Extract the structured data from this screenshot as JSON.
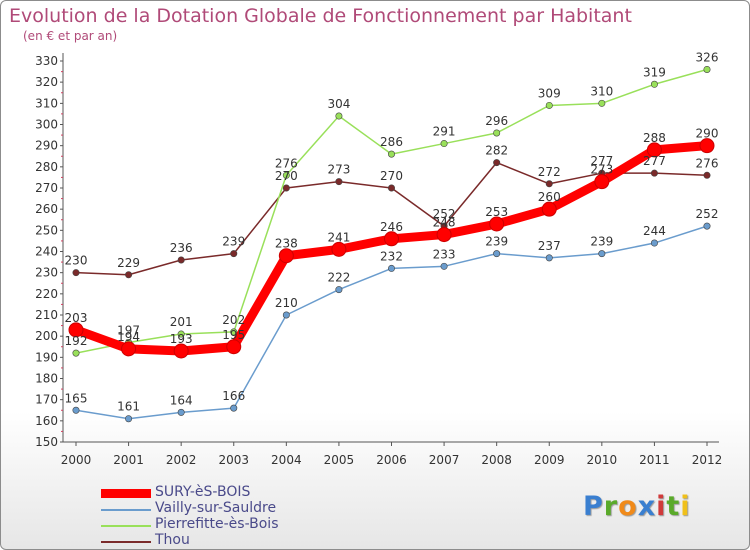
{
  "header": {
    "title": "Evolution de la Dotation Globale de Fonctionnement par Habitant",
    "subtitle": "(en € et par an)"
  },
  "chart_data": {
    "type": "line",
    "title": "Evolution de la Dotation Globale de Fonctionnement par Habitant",
    "subtitle": "(en € et par an)",
    "xlabel": "",
    "ylabel": "",
    "ylim": [
      150,
      330
    ],
    "ytick_step": 10,
    "grid": false,
    "x": [
      "2000",
      "2001",
      "2002",
      "2003",
      "2004",
      "2005",
      "2006",
      "2007",
      "2008",
      "2009",
      "2010",
      "2011",
      "2012"
    ],
    "series": [
      {
        "name": "SURY-èS-BOIS",
        "color": "#ff0000",
        "values": [
          203,
          194,
          193,
          195,
          238,
          241,
          246,
          248,
          253,
          260,
          273,
          288,
          290
        ]
      },
      {
        "name": "Vailly-sur-Sauldre",
        "color": "#6a9ccd",
        "values": [
          165,
          161,
          164,
          166,
          210,
          222,
          232,
          233,
          239,
          237,
          239,
          244,
          252
        ]
      },
      {
        "name": "Pierrefitte-ès-Bois",
        "color": "#99e05a",
        "values": [
          192,
          197,
          201,
          202,
          276,
          304,
          286,
          291,
          296,
          309,
          310,
          319,
          326
        ]
      },
      {
        "name": "Thou",
        "color": "#7a2a2a",
        "values": [
          230,
          229,
          236,
          239,
          270,
          273,
          270,
          252,
          282,
          272,
          277,
          277,
          276
        ]
      }
    ],
    "legend": "bottom-left"
  },
  "brand": {
    "letters": [
      "P",
      "r",
      "o",
      "x",
      "i",
      "t",
      "i"
    ],
    "colors": [
      "#3a7fd0",
      "#5aaa2a",
      "#f08a1a",
      "#3a7fd0",
      "#d03a3a",
      "#5aaa2a",
      "#f0c01a"
    ]
  }
}
